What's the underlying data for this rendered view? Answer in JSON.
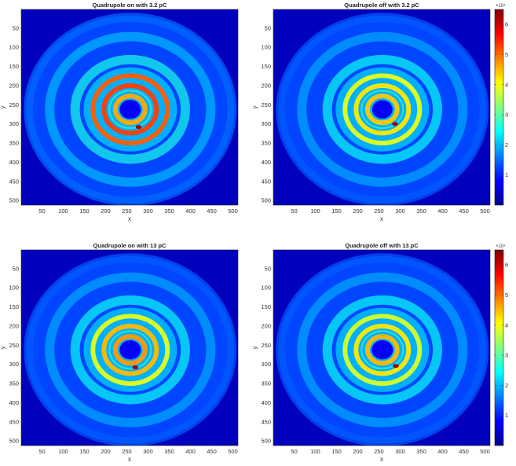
{
  "chart_data": [
    {
      "type": "heatmap",
      "title": "Quadrupole on with 3.2 pC",
      "xlabel": "x",
      "ylabel": "y",
      "xlim": [
        1,
        512
      ],
      "ylim": [
        1,
        512
      ],
      "y_reversed": true,
      "x_ticks": [
        50,
        100,
        150,
        200,
        250,
        300,
        350,
        400,
        450,
        500
      ],
      "y_ticks": [
        50,
        100,
        150,
        200,
        250,
        300,
        350,
        400,
        450,
        500
      ],
      "colormap": "jet",
      "ring_pattern": {
        "center": [
          258,
          262
        ],
        "ring_radii": [
          35,
          62,
          88,
          130,
          190,
          240
        ],
        "ring_levels": [
          4.6,
          5.3,
          5.1,
          2.6,
          2.0,
          1.5
        ],
        "hole_radius": 25,
        "spot": [
          278,
          308
        ]
      },
      "has_colorbar": false
    },
    {
      "type": "heatmap",
      "title": "Quadrupole off with 3.2 pC",
      "xlabel": "x",
      "ylabel": "y",
      "xlim": [
        1,
        512
      ],
      "ylim": [
        1,
        512
      ],
      "y_reversed": true,
      "x_ticks": [
        50,
        100,
        150,
        200,
        250,
        300,
        350,
        400,
        450,
        500
      ],
      "y_ticks": [
        50,
        100,
        150,
        200,
        250,
        300,
        350,
        400,
        450,
        500
      ],
      "colormap": "jet",
      "ring_pattern": {
        "center": [
          258,
          262
        ],
        "ring_radii": [
          35,
          62,
          88,
          130,
          190,
          240
        ],
        "ring_levels": [
          4.4,
          4.2,
          3.9,
          2.5,
          1.9,
          1.4
        ],
        "hole_radius": 24,
        "spot": [
          288,
          300
        ]
      },
      "has_colorbar": true
    },
    {
      "type": "heatmap",
      "title": "Quadrupole on with 13 pC",
      "xlabel": "x",
      "ylabel": "y",
      "xlim": [
        1,
        512
      ],
      "ylim": [
        1,
        512
      ],
      "y_reversed": true,
      "x_ticks": [
        50,
        100,
        150,
        200,
        250,
        300,
        350,
        400,
        450,
        500
      ],
      "y_ticks": [
        50,
        100,
        150,
        200,
        250,
        300,
        350,
        400,
        450,
        500
      ],
      "colormap": "jet",
      "ring_pattern": {
        "center": [
          258,
          262
        ],
        "ring_radii": [
          35,
          62,
          88,
          130,
          190,
          240
        ],
        "ring_levels": [
          4.7,
          4.5,
          3.9,
          2.5,
          1.9,
          1.4
        ],
        "hole_radius": 25,
        "spot": [
          270,
          308
        ]
      },
      "has_colorbar": false
    },
    {
      "type": "heatmap",
      "title": "Quadrupole off with 13 pC",
      "xlabel": "x",
      "ylabel": "y",
      "xlim": [
        1,
        512
      ],
      "ylim": [
        1,
        512
      ],
      "y_reversed": true,
      "x_ticks": [
        50,
        100,
        150,
        200,
        250,
        300,
        350,
        400,
        450,
        500
      ],
      "y_ticks": [
        50,
        100,
        150,
        200,
        250,
        300,
        350,
        400,
        450,
        500
      ],
      "colormap": "jet",
      "ring_pattern": {
        "center": [
          258,
          262
        ],
        "ring_radii": [
          35,
          62,
          88,
          130,
          190,
          240
        ],
        "ring_levels": [
          4.5,
          4.2,
          3.8,
          2.5,
          1.9,
          1.4
        ],
        "hole_radius": 25,
        "spot": [
          290,
          304
        ]
      },
      "has_colorbar": true
    }
  ],
  "colorbar": {
    "range": [
      0,
      6.5
    ],
    "ticks": [
      1,
      2,
      3,
      4,
      5,
      6
    ],
    "exponent_label": "×10⁴"
  }
}
